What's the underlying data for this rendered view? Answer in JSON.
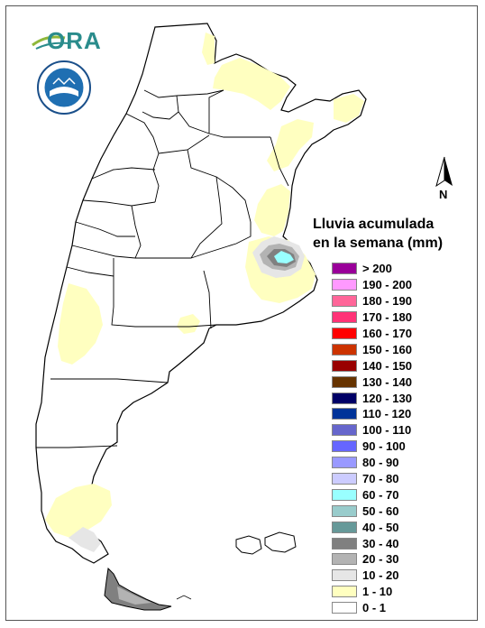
{
  "map": {
    "legend_title_line1": "Lluvia acumulada",
    "legend_title_line2": "en la semana (mm)",
    "north_label": "N",
    "logo_text": "ORA",
    "legend": [
      {
        "label": "> 200",
        "color": "#990099"
      },
      {
        "label": "190 - 200",
        "color": "#ff99ff"
      },
      {
        "label": "180 - 190",
        "color": "#ff6699"
      },
      {
        "label": "170 - 180",
        "color": "#ff3377"
      },
      {
        "label": "160 - 170",
        "color": "#ff0000"
      },
      {
        "label": "150 - 160",
        "color": "#cc3300"
      },
      {
        "label": "140 - 150",
        "color": "#990000"
      },
      {
        "label": "130 - 140",
        "color": "#663300"
      },
      {
        "label": "120 - 130",
        "color": "#000066"
      },
      {
        "label": "110 - 120",
        "color": "#003399"
      },
      {
        "label": "100 - 110",
        "color": "#6666cc"
      },
      {
        "label": "90 - 100",
        "color": "#6666ff"
      },
      {
        "label": "80 - 90",
        "color": "#9999ff"
      },
      {
        "label": "70 - 80",
        "color": "#ccccff"
      },
      {
        "label": "60 - 70",
        "color": "#99ffff"
      },
      {
        "label": "50 - 60",
        "color": "#99cccc"
      },
      {
        "label": "40 - 50",
        "color": "#669999"
      },
      {
        "label": "30 - 40",
        "color": "#808080"
      },
      {
        "label": "20 - 30",
        "color": "#b3b3b3"
      },
      {
        "label": "10 - 20",
        "color": "#e6e6e6"
      },
      {
        "label": "1 - 10",
        "color": "#ffffc0"
      },
      {
        "label": "0 - 1",
        "color": "#ffffff"
      }
    ]
  }
}
